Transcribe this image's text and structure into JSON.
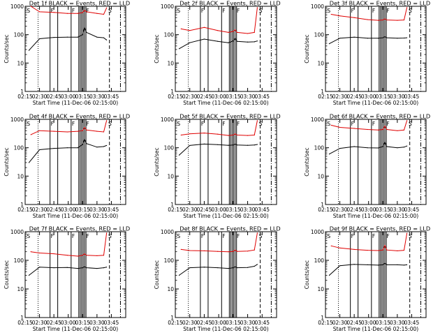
{
  "figure": {
    "ylabel": "Counts/sec",
    "xlabel": "Start Time (11-Dec-06 02:15:00)",
    "colors": {
      "events": "#000000",
      "lld": "#e00000",
      "axes": "#000000"
    }
  },
  "chart_data": [
    {
      "type": "line",
      "title": "Det 1f BLACK = Events, RED = LLD",
      "xlabel": "Start Time (11-Dec-06 02:15:00)",
      "ylabel": "Counts/sec",
      "yscale": "log",
      "ylim": [
        1,
        1000
      ],
      "y_ticks": [
        "1",
        "10",
        "100",
        "1000"
      ],
      "x_ticks": [
        "02:15",
        "02:30",
        "02:45",
        "03:00",
        "03:15",
        "03:30",
        "03:45"
      ],
      "xlim_minutes": [
        0,
        105
      ],
      "series": [
        {
          "name": "Events",
          "color": "#000000",
          "x": [
            4,
            15,
            30,
            44,
            55,
            60,
            62,
            64,
            75,
            82,
            85
          ],
          "y": [
            28,
            72,
            80,
            82,
            82,
            100,
            180,
            120,
            82,
            78,
            65
          ]
        },
        {
          "name": "LLD",
          "color": "#e00000",
          "x": [
            6,
            15,
            30,
            44,
            55,
            60,
            62,
            64,
            75,
            82,
            85
          ],
          "y": [
            1000,
            640,
            610,
            560,
            560,
            600,
            720,
            640,
            560,
            520,
            880
          ]
        }
      ],
      "annotations": [
        "S",
        "F",
        "F",
        "F",
        "S"
      ]
    },
    {
      "type": "line",
      "title": "Det 2f BLACK = Events, RED = LLD",
      "xlabel": "Start Time (11-Dec-06 02:15:00)",
      "ylabel": "Counts/sec",
      "yscale": "log",
      "ylim": [
        1,
        1000
      ],
      "y_ticks": [
        "1",
        "10",
        "100",
        "1000"
      ],
      "x_ticks": [
        "02:15",
        "02:30",
        "02:45",
        "03:00",
        "03:15",
        "03:30",
        "03:45"
      ],
      "xlim_minutes": [
        0,
        105
      ],
      "series": [
        {
          "name": "Events",
          "color": "#000000",
          "x": [
            4,
            15,
            30,
            44,
            55,
            60,
            62,
            64,
            75,
            82,
            85
          ],
          "y": [
            32,
            52,
            70,
            58,
            52,
            60,
            75,
            58,
            55,
            56,
            60
          ]
        },
        {
          "name": "LLD",
          "color": "#e00000",
          "x": [
            6,
            15,
            30,
            44,
            55,
            60,
            62,
            64,
            75,
            82,
            85
          ],
          "y": [
            160,
            140,
            180,
            140,
            120,
            130,
            150,
            120,
            110,
            120,
            900
          ]
        }
      ],
      "annotations": [
        "S",
        "F",
        "F",
        "F",
        "S"
      ]
    },
    {
      "type": "line",
      "title": "Det 3f BLACK = Events, RED = LLD",
      "xlabel": "Start Time (11-Dec-06 02:15:00)",
      "ylabel": "Counts/sec",
      "yscale": "log",
      "ylim": [
        1,
        1000
      ],
      "y_ticks": [
        "1",
        "10",
        "100",
        "1000"
      ],
      "x_ticks": [
        "02:15",
        "02:30",
        "02:45",
        "03:00",
        "03:15",
        "03:30",
        "03:45"
      ],
      "xlim_minutes": [
        0,
        105
      ],
      "series": [
        {
          "name": "Events",
          "color": "#000000",
          "x": [
            4,
            15,
            30,
            44,
            55,
            60,
            62,
            64,
            75,
            82,
            85
          ],
          "y": [
            48,
            75,
            82,
            75,
            75,
            78,
            85,
            78,
            75,
            76,
            78
          ]
        },
        {
          "name": "LLD",
          "color": "#e00000",
          "x": [
            6,
            15,
            30,
            44,
            55,
            60,
            62,
            64,
            75,
            82,
            85
          ],
          "y": [
            520,
            460,
            400,
            340,
            320,
            330,
            360,
            330,
            320,
            330,
            900
          ]
        }
      ],
      "annotations": [
        "S",
        "F",
        "F",
        "F",
        "S"
      ]
    },
    {
      "type": "line",
      "title": "Det 4f BLACK = Events, RED = LLD",
      "xlabel": "Start Time (11-Dec-06 02:15:00)",
      "ylabel": "Counts/sec",
      "yscale": "log",
      "ylim": [
        1,
        1000
      ],
      "y_ticks": [
        "1",
        "10",
        "100",
        "1000"
      ],
      "x_ticks": [
        "02:15",
        "02:30",
        "02:45",
        "03:00",
        "03:15",
        "03:30",
        "03:45"
      ],
      "xlim_minutes": [
        0,
        105
      ],
      "series": [
        {
          "name": "Events",
          "color": "#000000",
          "x": [
            4,
            15,
            30,
            44,
            55,
            60,
            62,
            64,
            75,
            82,
            85
          ],
          "y": [
            30,
            85,
            95,
            100,
            100,
            130,
            200,
            140,
            105,
            110,
            120
          ]
        },
        {
          "name": "LLD",
          "color": "#e00000",
          "x": [
            6,
            15,
            30,
            44,
            55,
            60,
            62,
            64,
            75,
            82,
            85
          ],
          "y": [
            290,
            400,
            380,
            360,
            380,
            400,
            520,
            420,
            380,
            360,
            900
          ]
        }
      ],
      "annotations": [
        "S",
        "F",
        "F",
        "F",
        "S"
      ]
    },
    {
      "type": "line",
      "title": "Det 5f BLACK = Events, RED = LLD",
      "xlabel": "Start Time (11-Dec-06 02:15:00)",
      "ylabel": "Counts/sec",
      "yscale": "log",
      "ylim": [
        1,
        1000
      ],
      "y_ticks": [
        "1",
        "10",
        "100",
        "1000"
      ],
      "x_ticks": [
        "02:15",
        "02:30",
        "02:45",
        "03:00",
        "03:15",
        "03:30",
        "03:45"
      ],
      "xlim_minutes": [
        0,
        105
      ],
      "series": [
        {
          "name": "Events",
          "color": "#000000",
          "x": [
            4,
            15,
            30,
            44,
            55,
            60,
            62,
            64,
            75,
            82,
            85
          ],
          "y": [
            55,
            120,
            135,
            128,
            122,
            125,
            135,
            125,
            122,
            125,
            130
          ]
        },
        {
          "name": "LLD",
          "color": "#e00000",
          "x": [
            6,
            15,
            30,
            44,
            55,
            60,
            62,
            64,
            75,
            82,
            85
          ],
          "y": [
            280,
            310,
            330,
            300,
            270,
            280,
            310,
            280,
            270,
            280,
            900
          ]
        }
      ],
      "annotations": [
        "S",
        "F",
        "F",
        "F",
        "S"
      ]
    },
    {
      "type": "line",
      "title": "Det 6f BLACK = Events, RED = LLD",
      "xlabel": "Start Time (11-Dec-06 02:15:00)",
      "ylabel": "Counts/sec",
      "yscale": "log",
      "ylim": [
        1,
        1000
      ],
      "y_ticks": [
        "1",
        "10",
        "100",
        "1000"
      ],
      "x_ticks": [
        "02:15",
        "02:30",
        "02:45",
        "03:00",
        "03:15",
        "03:30",
        "03:45"
      ],
      "xlim_minutes": [
        0,
        105
      ],
      "series": [
        {
          "name": "Events",
          "color": "#000000",
          "x": [
            4,
            15,
            30,
            44,
            55,
            60,
            62,
            64,
            75,
            82,
            85
          ],
          "y": [
            60,
            95,
            110,
            100,
            98,
            110,
            160,
            110,
            100,
            105,
            115
          ]
        },
        {
          "name": "LLD",
          "color": "#e00000",
          "x": [
            6,
            15,
            30,
            44,
            55,
            60,
            62,
            64,
            75,
            82,
            85
          ],
          "y": [
            620,
            520,
            480,
            440,
            420,
            440,
            580,
            440,
            400,
            420,
            900
          ]
        }
      ],
      "annotations": [
        "S",
        "F",
        "F",
        "F",
        "S"
      ]
    },
    {
      "type": "line",
      "title": "Det 7f BLACK = Events, RED = LLD",
      "xlabel": "Start Time (11-Dec-06 02:15:00)",
      "ylabel": "Counts/sec",
      "yscale": "log",
      "ylim": [
        1,
        1000
      ],
      "y_ticks": [
        "1",
        "10",
        "100",
        "1000"
      ],
      "x_ticks": [
        "02:15",
        "02:30",
        "02:45",
        "03:00",
        "03:15",
        "03:30",
        "03:45"
      ],
      "xlim_minutes": [
        0,
        105
      ],
      "series": [
        {
          "name": "Events",
          "color": "#000000",
          "x": [
            4,
            15,
            30,
            44,
            55,
            60,
            62,
            64,
            75,
            82,
            85
          ],
          "y": [
            30,
            58,
            55,
            56,
            52,
            55,
            60,
            55,
            52,
            55,
            58
          ]
        },
        {
          "name": "LLD",
          "color": "#e00000",
          "x": [
            6,
            15,
            30,
            44,
            55,
            60,
            62,
            64,
            75,
            82,
            85
          ],
          "y": [
            200,
            180,
            170,
            150,
            140,
            150,
            170,
            150,
            145,
            150,
            900
          ]
        }
      ],
      "annotations": [
        "S",
        "F",
        "F",
        "F",
        "S"
      ]
    },
    {
      "type": "line",
      "title": "Det 8f BLACK = Events, RED = LLD",
      "xlabel": "Start Time (11-Dec-06 02:15:00)",
      "ylabel": "Counts/sec",
      "yscale": "log",
      "ylim": [
        1,
        1000
      ],
      "y_ticks": [
        "1",
        "10",
        "100",
        "1000"
      ],
      "x_ticks": [
        "02:15",
        "02:30",
        "02:45",
        "03:00",
        "03:15",
        "03:30",
        "03:45"
      ],
      "xlim_minutes": [
        0,
        105
      ],
      "series": [
        {
          "name": "Events",
          "color": "#000000",
          "x": [
            4,
            15,
            30,
            44,
            55,
            60,
            62,
            64,
            75,
            82,
            85
          ],
          "y": [
            30,
            55,
            58,
            55,
            52,
            55,
            60,
            55,
            56,
            62,
            72
          ]
        },
        {
          "name": "LLD",
          "color": "#e00000",
          "x": [
            6,
            15,
            30,
            44,
            55,
            60,
            62,
            64,
            75,
            82,
            85
          ],
          "y": [
            240,
            220,
            215,
            205,
            200,
            205,
            230,
            205,
            210,
            230,
            900
          ]
        }
      ],
      "annotations": [
        "S",
        "F",
        "F",
        "F",
        "S"
      ]
    },
    {
      "type": "line",
      "title": "Det 9f BLACK = Events, RED = LLD",
      "xlabel": "Start Time (11-Dec-06 02:15:00)",
      "ylabel": "Counts/sec",
      "yscale": "log",
      "ylim": [
        1,
        1000
      ],
      "y_ticks": [
        "1",
        "10",
        "100",
        "1000"
      ],
      "x_ticks": [
        "02:15",
        "02:30",
        "02:45",
        "03:00",
        "03:15",
        "03:30",
        "03:45"
      ],
      "xlim_minutes": [
        0,
        105
      ],
      "series": [
        {
          "name": "Events",
          "color": "#000000",
          "x": [
            4,
            15,
            30,
            44,
            55,
            60,
            62,
            64,
            75,
            82,
            85
          ],
          "y": [
            30,
            65,
            72,
            70,
            68,
            70,
            80,
            70,
            70,
            68,
            70
          ]
        },
        {
          "name": "LLD",
          "color": "#e00000",
          "x": [
            6,
            15,
            30,
            44,
            55,
            60,
            62,
            64,
            75,
            82,
            85
          ],
          "y": [
            320,
            270,
            240,
            225,
            220,
            230,
            330,
            230,
            215,
            225,
            880
          ]
        }
      ],
      "annotations": [
        "S",
        "F",
        "F",
        "F",
        "S"
      ]
    }
  ]
}
